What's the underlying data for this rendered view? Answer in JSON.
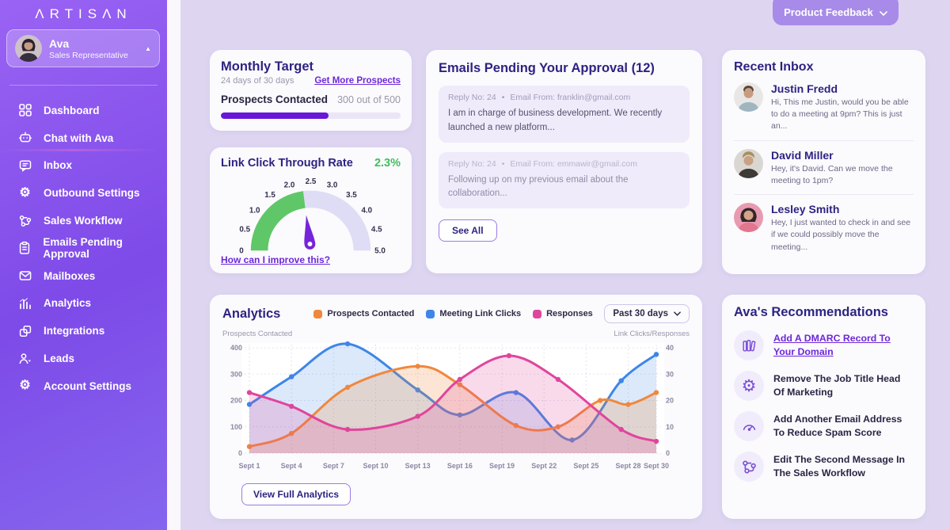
{
  "sidebar": {
    "logo": "ΛRTISΛN",
    "profile": {
      "name": "Ava",
      "role": "Sales Representative"
    },
    "items": [
      {
        "label": "Dashboard",
        "icon": "dashboard-icon"
      },
      {
        "label": "Chat with Ava",
        "icon": "bot-icon"
      },
      {
        "label": "Inbox",
        "icon": "inbox-icon"
      },
      {
        "label": "Outbound Settings",
        "icon": "gear-icon"
      },
      {
        "label": "Sales Workflow",
        "icon": "workflow-icon"
      },
      {
        "label": "Emails Pending Approval",
        "icon": "clipboard-icon"
      },
      {
        "label": "Mailboxes",
        "icon": "envelope-icon"
      },
      {
        "label": "Analytics",
        "icon": "bar-chart-icon"
      },
      {
        "label": "Integrations",
        "icon": "puzzle-icon"
      },
      {
        "label": "Leads",
        "icon": "leads-icon"
      },
      {
        "label": "Account Settings",
        "icon": "gear-cog-icon"
      }
    ]
  },
  "header": {
    "product_feedback_label": "Product Feedback"
  },
  "monthly_target": {
    "title": "Monthly Target",
    "days": "24 days of 30 days",
    "link": "Get More Prospects",
    "metric_label": "Prospects Contacted",
    "metric_value": "300 out of 500",
    "progress_pct": 60,
    "bar_color": "#6A16D8"
  },
  "link_ctr": {
    "title": "Link Click Through Rate",
    "value_label": "2.3%",
    "value": 2.3,
    "min": 0,
    "max": 5,
    "ticks": [
      "0",
      "0.5",
      "1.0",
      "1.5",
      "2.0",
      "2.5",
      "3.0",
      "3.5",
      "4.0",
      "4.5",
      "5.0"
    ],
    "link": "How can I improve this?",
    "green_color": "#5FC768",
    "track_color": "#DFDCF5",
    "needle_color": "#7524DB"
  },
  "emails_pending": {
    "title": "Emails Pending Your Approval (12)",
    "emails": [
      {
        "reply_no": "Reply No: 24",
        "from": "Email From: franklin@gmail.com",
        "body": "I am in charge of business development. We recently launched a new platform..."
      },
      {
        "reply_no": "Reply No: 24",
        "from": "Email From: emmawir@gmail.com",
        "body": "Following up on my previous email about the collaboration..."
      }
    ],
    "see_all_label": "See All"
  },
  "recent_inbox": {
    "title": "Recent Inbox",
    "messages": [
      {
        "name": "Justin Fredd",
        "preview": "Hi, This me Justin, would you be able to do a meeting at 9pm? This is just an..."
      },
      {
        "name": "David Miller",
        "preview": "Hey, it's David. Can we move the meeting to 1pm?"
      },
      {
        "name": "Lesley Smith",
        "preview": "Hey, I just wanted to check in and see if we could possibly move the meeting..."
      }
    ]
  },
  "analytics": {
    "title": "Analytics",
    "range_label": "Past 30 days",
    "view_full_label": "View Full Analytics"
  },
  "chart_data": {
    "type": "line",
    "x_ticks": [
      "Sept 1",
      "Sept 4",
      "Sept 7",
      "Sept 10",
      "Sept 13",
      "Sept 16",
      "Sept 19",
      "Sept 22",
      "Sept 25",
      "Sept 28",
      "Sept 30"
    ],
    "x_tick_days": [
      1,
      4,
      7,
      10,
      13,
      16,
      19,
      22,
      25,
      28,
      30
    ],
    "left_axis": {
      "label": "Prospects Contacted",
      "ticks": [
        0,
        100,
        200,
        300,
        400
      ],
      "range": [
        0,
        400
      ]
    },
    "right_axis": {
      "label": "Link Clicks/Responses",
      "ticks": [
        0,
        10,
        20,
        30,
        40
      ],
      "range": [
        0,
        40
      ]
    },
    "grid": true,
    "legend_position": "top",
    "series": [
      {
        "name": "Prospects Contacted",
        "axis": "left",
        "color": "#F0883C",
        "fill": "rgba(240,136,60,0.22)",
        "x_days": [
          1,
          4,
          8,
          13,
          16,
          20,
          23,
          26,
          28,
          30
        ],
        "values": [
          25,
          75,
          250,
          330,
          260,
          105,
          100,
          200,
          185,
          230
        ]
      },
      {
        "name": "Meeting Link Clicks",
        "axis": "right",
        "color": "#3D86E8",
        "fill": "rgba(61,134,232,0.18)",
        "x_days": [
          1,
          4,
          8,
          13,
          16,
          20,
          24,
          27.5,
          30
        ],
        "values": [
          18.5,
          29,
          41.5,
          24,
          14.5,
          23,
          5,
          27.5,
          37.5
        ]
      },
      {
        "name": "Responses",
        "axis": "right",
        "color": "#E0459C",
        "fill": "rgba(224,69,156,0.20)",
        "x_days": [
          1,
          4,
          8,
          13,
          16,
          19.5,
          23,
          27.5,
          30
        ],
        "values": [
          23,
          17.8,
          9,
          14,
          28,
          37,
          28,
          9,
          4.5
        ]
      }
    ]
  },
  "recommendations": {
    "title": "Ava's Recommendations",
    "items": [
      {
        "icon": "books-icon",
        "text": "Add A DMARC Record To Your Domain",
        "is_link": true
      },
      {
        "icon": "gear-icon",
        "text": "Remove The Job Title Head Of Marketing",
        "is_link": false
      },
      {
        "icon": "speedometer-icon",
        "text": "Add Another Email Address To Reduce Spam Score",
        "is_link": false
      },
      {
        "icon": "workflow-icon",
        "text": "Edit The Second Message In The Sales Workflow",
        "is_link": false
      }
    ]
  }
}
